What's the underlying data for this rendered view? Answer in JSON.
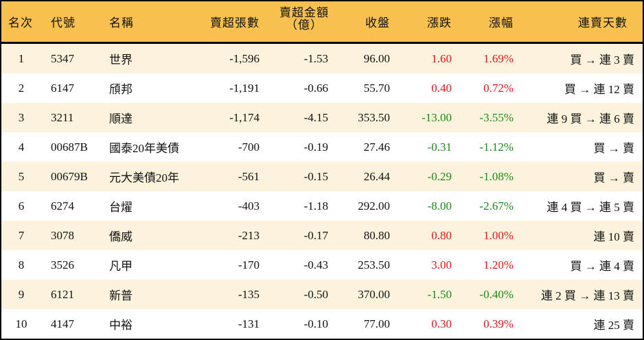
{
  "table": {
    "headers": {
      "rank": "名次",
      "code": "代號",
      "name": "名稱",
      "net_sell_lots": "賣超張數",
      "net_sell_amount_line1": "賣超金額",
      "net_sell_amount_line2": "（億）",
      "close": "收盤",
      "change": "漲跌",
      "change_pct": "漲幅",
      "streak": "連賣天數"
    },
    "colors": {
      "header_bg": "#F8C04E",
      "alt_row_bg": "#FDF3DC",
      "up": "#E8141C",
      "down": "#1A8A1A"
    },
    "rows": [
      {
        "rank": "1",
        "code": "5347",
        "name": "世界",
        "lots": "-1,596",
        "amount": "-1.53",
        "close": "96.00",
        "change": "1.60",
        "pct": "1.69%",
        "dir": "up",
        "streak": "買 → 連 3 賣"
      },
      {
        "rank": "2",
        "code": "6147",
        "name": "頎邦",
        "lots": "-1,191",
        "amount": "-0.66",
        "close": "55.70",
        "change": "0.40",
        "pct": "0.72%",
        "dir": "up",
        "streak": "買 → 連 12 賣"
      },
      {
        "rank": "3",
        "code": "3211",
        "name": "順達",
        "lots": "-1,174",
        "amount": "-4.15",
        "close": "353.50",
        "change": "-13.00",
        "pct": "-3.55%",
        "dir": "down",
        "streak": "連 9 買 → 連 6 賣"
      },
      {
        "rank": "4",
        "code": "00687B",
        "name": "國泰20年美債",
        "lots": "-700",
        "amount": "-0.19",
        "close": "27.46",
        "change": "-0.31",
        "pct": "-1.12%",
        "dir": "down",
        "streak": "買 → 賣"
      },
      {
        "rank": "5",
        "code": "00679B",
        "name": "元大美債20年",
        "lots": "-561",
        "amount": "-0.15",
        "close": "26.44",
        "change": "-0.29",
        "pct": "-1.08%",
        "dir": "down",
        "streak": "買 → 賣"
      },
      {
        "rank": "6",
        "code": "6274",
        "name": "台燿",
        "lots": "-403",
        "amount": "-1.18",
        "close": "292.00",
        "change": "-8.00",
        "pct": "-2.67%",
        "dir": "down",
        "streak": "連 4 買 → 連 5 賣"
      },
      {
        "rank": "7",
        "code": "3078",
        "name": "僑威",
        "lots": "-213",
        "amount": "-0.17",
        "close": "80.80",
        "change": "0.80",
        "pct": "1.00%",
        "dir": "up",
        "streak": "連 10 賣"
      },
      {
        "rank": "8",
        "code": "3526",
        "name": "凡甲",
        "lots": "-170",
        "amount": "-0.43",
        "close": "253.50",
        "change": "3.00",
        "pct": "1.20%",
        "dir": "up",
        "streak": "買 → 連 4 賣"
      },
      {
        "rank": "9",
        "code": "6121",
        "name": "新普",
        "lots": "-135",
        "amount": "-0.50",
        "close": "370.00",
        "change": "-1.50",
        "pct": "-0.40%",
        "dir": "down",
        "streak": "連 2 買 → 連 13 賣"
      },
      {
        "rank": "10",
        "code": "4147",
        "name": "中裕",
        "lots": "-131",
        "amount": "-0.10",
        "close": "77.00",
        "change": "0.30",
        "pct": "0.39%",
        "dir": "up",
        "streak": "連 25 賣"
      }
    ]
  }
}
